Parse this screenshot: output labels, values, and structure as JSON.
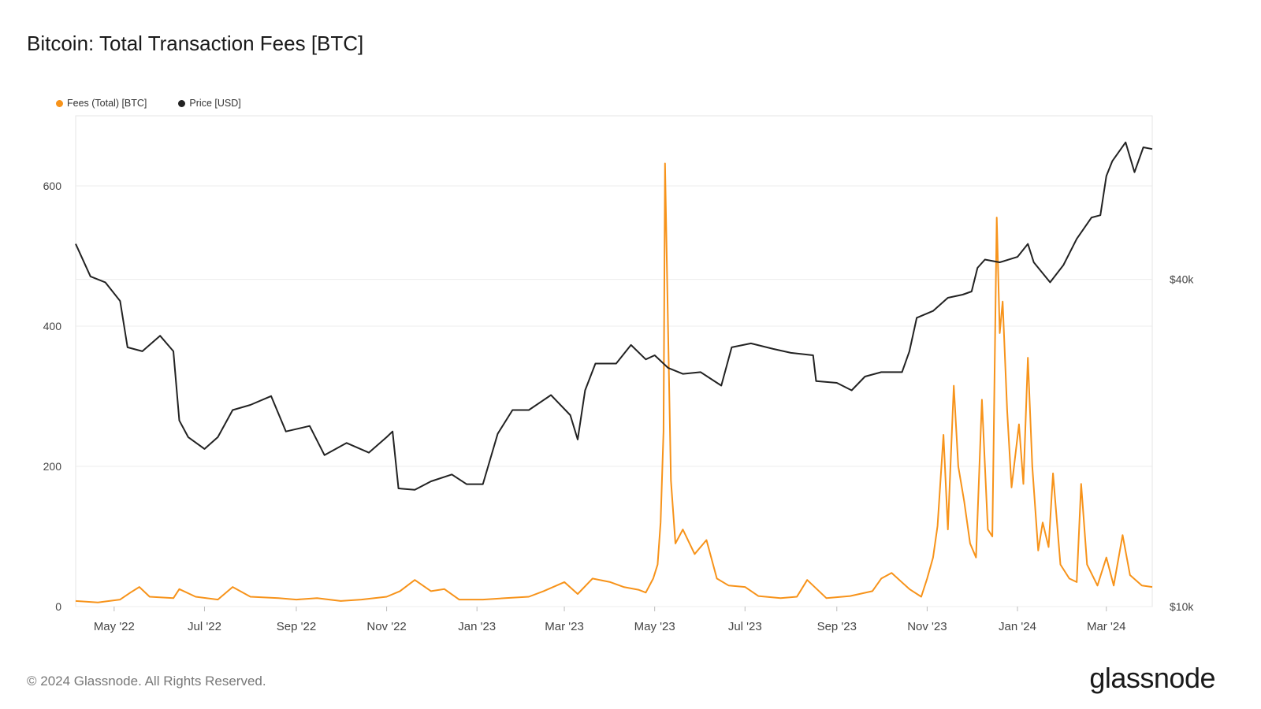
{
  "title": "Bitcoin: Total Transaction Fees [BTC]",
  "footer": "© 2024 Glassnode. All Rights Reserved.",
  "brand": "glassnode",
  "colors": {
    "fees": "#f7931a",
    "price": "#222222",
    "grid": "#ececec"
  },
  "chart_data": {
    "type": "line",
    "title": "Bitcoin: Total Transaction Fees [BTC]",
    "legend_position": "top-left",
    "grid": true,
    "x_ticks": [
      "May '22",
      "Jul '22",
      "Sep '22",
      "Nov '22",
      "Jan '23",
      "Mar '23",
      "May '23",
      "Jul '23",
      "Sep '23",
      "Nov '23",
      "Jan '24",
      "Mar '24"
    ],
    "x_range": [
      "2022-04-05",
      "2024-04-01"
    ],
    "y_left": {
      "ticks": [
        "0",
        "200",
        "400",
        "600"
      ],
      "range": [
        0,
        700
      ]
    },
    "y_right": {
      "ticks": [
        "$10k",
        "$40k"
      ],
      "scale": "log",
      "range": [
        10000,
        80000
      ]
    },
    "series": [
      {
        "name": "Fees (Total) [BTC]",
        "axis": "left",
        "points": [
          [
            "2022-04-05",
            8
          ],
          [
            "2022-04-20",
            6
          ],
          [
            "2022-05-05",
            10
          ],
          [
            "2022-05-12",
            20
          ],
          [
            "2022-05-18",
            28
          ],
          [
            "2022-05-25",
            14
          ],
          [
            "2022-06-10",
            12
          ],
          [
            "2022-06-14",
            25
          ],
          [
            "2022-06-25",
            14
          ],
          [
            "2022-07-10",
            10
          ],
          [
            "2022-07-20",
            28
          ],
          [
            "2022-08-01",
            14
          ],
          [
            "2022-08-20",
            12
          ],
          [
            "2022-09-01",
            10
          ],
          [
            "2022-09-15",
            12
          ],
          [
            "2022-10-01",
            8
          ],
          [
            "2022-10-15",
            10
          ],
          [
            "2022-11-01",
            14
          ],
          [
            "2022-11-10",
            22
          ],
          [
            "2022-11-20",
            38
          ],
          [
            "2022-12-01",
            22
          ],
          [
            "2022-12-10",
            25
          ],
          [
            "2022-12-20",
            10
          ],
          [
            "2023-01-05",
            10
          ],
          [
            "2023-01-20",
            12
          ],
          [
            "2023-02-05",
            14
          ],
          [
            "2023-02-15",
            22
          ],
          [
            "2023-03-01",
            35
          ],
          [
            "2023-03-10",
            18
          ],
          [
            "2023-03-20",
            40
          ],
          [
            "2023-04-01",
            35
          ],
          [
            "2023-04-10",
            28
          ],
          [
            "2023-04-20",
            24
          ],
          [
            "2023-04-25",
            20
          ],
          [
            "2023-04-30",
            40
          ],
          [
            "2023-05-03",
            60
          ],
          [
            "2023-05-05",
            120
          ],
          [
            "2023-05-07",
            250
          ],
          [
            "2023-05-08",
            632
          ],
          [
            "2023-05-10",
            400
          ],
          [
            "2023-05-12",
            180
          ],
          [
            "2023-05-15",
            90
          ],
          [
            "2023-05-20",
            110
          ],
          [
            "2023-05-28",
            75
          ],
          [
            "2023-06-05",
            95
          ],
          [
            "2023-06-12",
            40
          ],
          [
            "2023-06-20",
            30
          ],
          [
            "2023-07-01",
            28
          ],
          [
            "2023-07-10",
            15
          ],
          [
            "2023-07-25",
            12
          ],
          [
            "2023-08-05",
            14
          ],
          [
            "2023-08-12",
            38
          ],
          [
            "2023-08-25",
            12
          ],
          [
            "2023-09-10",
            15
          ],
          [
            "2023-09-25",
            22
          ],
          [
            "2023-10-01",
            40
          ],
          [
            "2023-10-08",
            48
          ],
          [
            "2023-10-20",
            25
          ],
          [
            "2023-10-28",
            14
          ],
          [
            "2023-11-01",
            40
          ],
          [
            "2023-11-05",
            70
          ],
          [
            "2023-11-08",
            115
          ],
          [
            "2023-11-12",
            245
          ],
          [
            "2023-11-15",
            110
          ],
          [
            "2023-11-19",
            315
          ],
          [
            "2023-11-22",
            200
          ],
          [
            "2023-11-26",
            150
          ],
          [
            "2023-11-30",
            90
          ],
          [
            "2023-12-04",
            70
          ],
          [
            "2023-12-08",
            295
          ],
          [
            "2023-12-12",
            110
          ],
          [
            "2023-12-15",
            100
          ],
          [
            "2023-12-18",
            555
          ],
          [
            "2023-12-20",
            390
          ],
          [
            "2023-12-22",
            435
          ],
          [
            "2023-12-25",
            280
          ],
          [
            "2023-12-28",
            170
          ],
          [
            "2024-01-02",
            260
          ],
          [
            "2024-01-05",
            175
          ],
          [
            "2024-01-08",
            355
          ],
          [
            "2024-01-11",
            200
          ],
          [
            "2024-01-15",
            80
          ],
          [
            "2024-01-18",
            120
          ],
          [
            "2024-01-22",
            85
          ],
          [
            "2024-01-25",
            190
          ],
          [
            "2024-01-30",
            60
          ],
          [
            "2024-02-05",
            40
          ],
          [
            "2024-02-10",
            35
          ],
          [
            "2024-02-13",
            175
          ],
          [
            "2024-02-17",
            60
          ],
          [
            "2024-02-24",
            30
          ],
          [
            "2024-03-01",
            70
          ],
          [
            "2024-03-06",
            30
          ],
          [
            "2024-03-12",
            102
          ],
          [
            "2024-03-17",
            45
          ],
          [
            "2024-03-25",
            30
          ],
          [
            "2024-04-01",
            28
          ]
        ]
      },
      {
        "name": "Price [USD]",
        "axis": "right",
        "points": [
          [
            "2022-04-05",
            46500
          ],
          [
            "2022-04-15",
            40500
          ],
          [
            "2022-04-25",
            39500
          ],
          [
            "2022-05-05",
            36500
          ],
          [
            "2022-05-10",
            30000
          ],
          [
            "2022-05-20",
            29500
          ],
          [
            "2022-06-01",
            31500
          ],
          [
            "2022-06-10",
            29500
          ],
          [
            "2022-06-14",
            22000
          ],
          [
            "2022-06-20",
            20500
          ],
          [
            "2022-07-01",
            19500
          ],
          [
            "2022-07-10",
            20500
          ],
          [
            "2022-07-20",
            23000
          ],
          [
            "2022-08-01",
            23500
          ],
          [
            "2022-08-15",
            24400
          ],
          [
            "2022-08-25",
            21000
          ],
          [
            "2022-09-10",
            21500
          ],
          [
            "2022-09-20",
            19000
          ],
          [
            "2022-10-05",
            20000
          ],
          [
            "2022-10-20",
            19200
          ],
          [
            "2022-11-01",
            20500
          ],
          [
            "2022-11-05",
            21000
          ],
          [
            "2022-11-09",
            16500
          ],
          [
            "2022-11-20",
            16400
          ],
          [
            "2022-12-01",
            17000
          ],
          [
            "2022-12-15",
            17500
          ],
          [
            "2022-12-25",
            16800
          ],
          [
            "2023-01-05",
            16800
          ],
          [
            "2023-01-15",
            20800
          ],
          [
            "2023-01-25",
            23000
          ],
          [
            "2023-02-05",
            23000
          ],
          [
            "2023-02-20",
            24500
          ],
          [
            "2023-03-05",
            22500
          ],
          [
            "2023-03-10",
            20300
          ],
          [
            "2023-03-15",
            25000
          ],
          [
            "2023-03-22",
            28000
          ],
          [
            "2023-04-05",
            28000
          ],
          [
            "2023-04-15",
            30300
          ],
          [
            "2023-04-25",
            28500
          ],
          [
            "2023-05-01",
            29000
          ],
          [
            "2023-05-10",
            27500
          ],
          [
            "2023-05-20",
            26800
          ],
          [
            "2023-06-01",
            27000
          ],
          [
            "2023-06-15",
            25500
          ],
          [
            "2023-06-22",
            30000
          ],
          [
            "2023-07-05",
            30500
          ],
          [
            "2023-07-20",
            29800
          ],
          [
            "2023-08-01",
            29300
          ],
          [
            "2023-08-16",
            29000
          ],
          [
            "2023-08-18",
            26000
          ],
          [
            "2023-09-01",
            25800
          ],
          [
            "2023-09-11",
            25000
          ],
          [
            "2023-09-20",
            26500
          ],
          [
            "2023-10-01",
            27000
          ],
          [
            "2023-10-15",
            27000
          ],
          [
            "2023-10-20",
            29500
          ],
          [
            "2023-10-25",
            34000
          ],
          [
            "2023-11-05",
            35000
          ],
          [
            "2023-11-15",
            37000
          ],
          [
            "2023-11-25",
            37500
          ],
          [
            "2023-12-01",
            38000
          ],
          [
            "2023-12-05",
            42000
          ],
          [
            "2023-12-10",
            43500
          ],
          [
            "2023-12-20",
            43000
          ],
          [
            "2024-01-01",
            44000
          ],
          [
            "2024-01-08",
            46500
          ],
          [
            "2024-01-12",
            43000
          ],
          [
            "2024-01-23",
            39500
          ],
          [
            "2024-02-01",
            42500
          ],
          [
            "2024-02-10",
            47500
          ],
          [
            "2024-02-20",
            52000
          ],
          [
            "2024-02-26",
            52500
          ],
          [
            "2024-03-01",
            62000
          ],
          [
            "2024-03-05",
            66000
          ],
          [
            "2024-03-14",
            71500
          ],
          [
            "2024-03-20",
            63000
          ],
          [
            "2024-03-26",
            70000
          ],
          [
            "2024-04-01",
            69500
          ]
        ]
      }
    ]
  }
}
